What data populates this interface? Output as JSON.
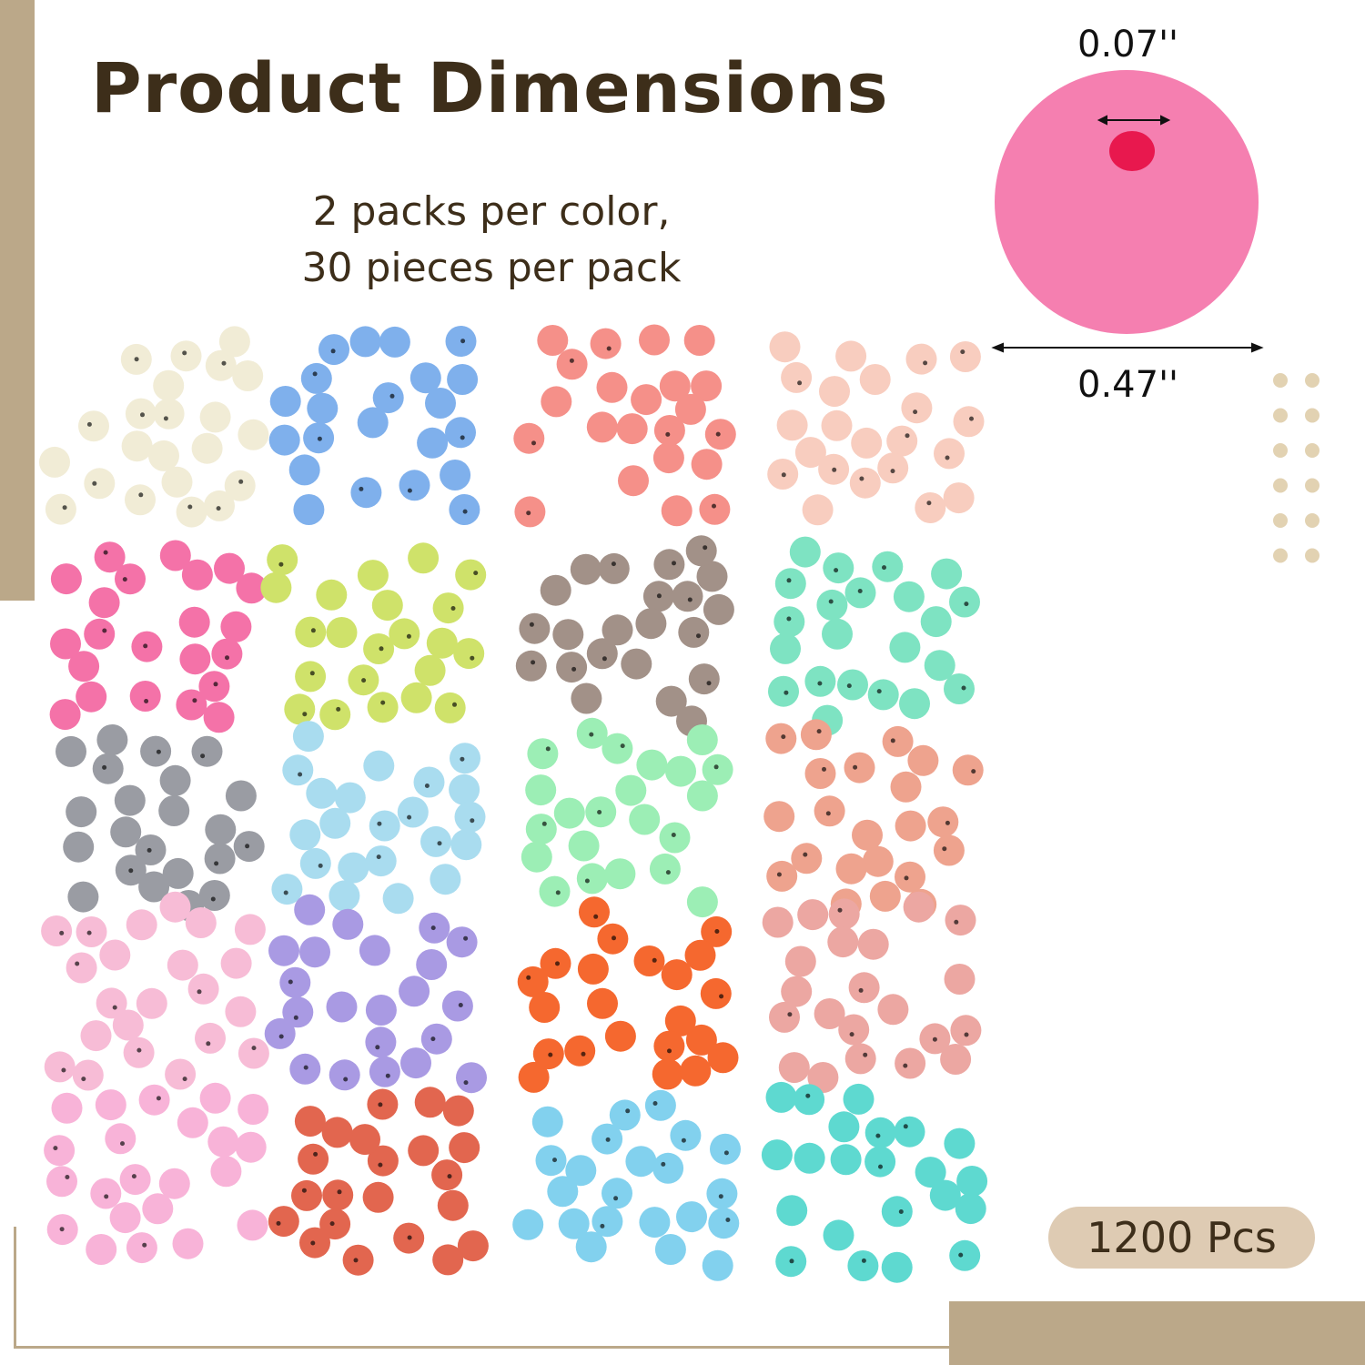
{
  "title": "Product Dimensions",
  "subtitle": {
    "line1": "2 packs per color,",
    "line2": "30 pieces per pack"
  },
  "dimensions": {
    "hole": "0.07''",
    "diameter": "0.47''"
  },
  "badge": "1200 Pcs",
  "colors": {
    "accent": "#bba889",
    "text": "#3d2e1a",
    "badge_bg": "#decbb3",
    "sample_bead": "#f57fb0",
    "sample_hole": "#e8184e",
    "bead_colors": [
      "#f1ecd6",
      "#7fb0ec",
      "#f59089",
      "#f8cdbf",
      "#f472a8",
      "#cfe26a",
      "#a29188",
      "#7ee3c2",
      "#9a9ca3",
      "#a9dcef",
      "#9ceeb5",
      "#eea38e",
      "#f7bcd6",
      "#a99ae3",
      "#f5682f",
      "#eca7a2",
      "#f8b3d8",
      "#e2664f",
      "#82d1ee",
      "#5ed9d0"
    ]
  }
}
